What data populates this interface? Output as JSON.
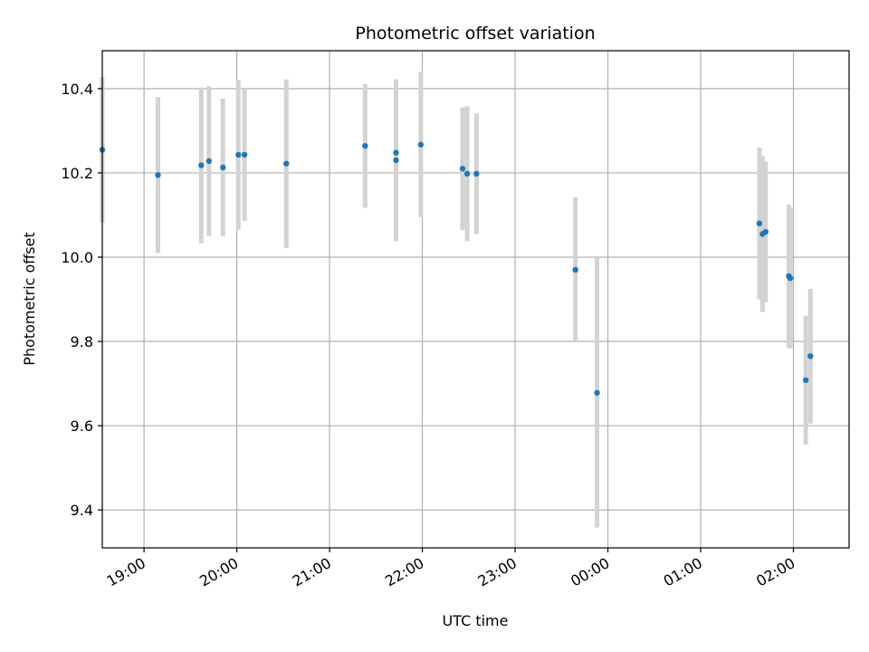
{
  "chart_data": {
    "type": "scatter",
    "title": "Photometric offset variation",
    "xlabel": "UTC time",
    "ylabel": "Photometric offset",
    "grid": true,
    "x_ticks": [
      "19:00",
      "20:00",
      "21:00",
      "22:00",
      "23:00",
      "00:00",
      "01:00",
      "02:00"
    ],
    "y_ticks": [
      "9.4",
      "9.6",
      "9.8",
      "10.0",
      "10.2",
      "10.4"
    ],
    "xlim": [
      "18:33",
      "02:36"
    ],
    "ylim": [
      9.31,
      10.49
    ],
    "colors": {
      "point": "#1f77b4",
      "errorbar": "#d3d3d3",
      "grid": "#b0b0b0"
    },
    "points": [
      {
        "x": "18:33",
        "y": 10.255,
        "err": 0.172
      },
      {
        "x": "19:09",
        "y": 10.195,
        "err": 0.185
      },
      {
        "x": "19:37",
        "y": 10.218,
        "err": 0.185
      },
      {
        "x": "19:42",
        "y": 10.228,
        "err": 0.178
      },
      {
        "x": "19:51",
        "y": 10.213,
        "err": 0.163
      },
      {
        "x": "20:01",
        "y": 10.243,
        "err": 0.178
      },
      {
        "x": "20:05",
        "y": 10.243,
        "err": 0.157
      },
      {
        "x": "20:32",
        "y": 10.222,
        "err": 0.2
      },
      {
        "x": "21:23",
        "y": 10.264,
        "err": 0.147
      },
      {
        "x": "21:43",
        "y": 10.23,
        "err": 0.192
      },
      {
        "x": "21:43",
        "y": 10.248,
        "err": 0.174
      },
      {
        "x": "21:59",
        "y": 10.267,
        "err": 0.172
      },
      {
        "x": "22:26",
        "y": 10.21,
        "err": 0.145
      },
      {
        "x": "22:29",
        "y": 10.198,
        "err": 0.16
      },
      {
        "x": "22:35",
        "y": 10.198,
        "err": 0.143
      },
      {
        "x": "23:39",
        "y": 9.97,
        "err": 0.172
      },
      {
        "x": "23:53",
        "y": 9.678,
        "err": 0.32
      },
      {
        "x": "01:38",
        "y": 10.08,
        "err": 0.18
      },
      {
        "x": "01:40",
        "y": 10.055,
        "err": 0.185
      },
      {
        "x": "01:42",
        "y": 10.06,
        "err": 0.167
      },
      {
        "x": "01:57",
        "y": 9.955,
        "err": 0.17
      },
      {
        "x": "01:58",
        "y": 9.95,
        "err": 0.167
      },
      {
        "x": "02:08",
        "y": 9.708,
        "err": 0.153
      },
      {
        "x": "02:11",
        "y": 9.765,
        "err": 0.16
      }
    ]
  }
}
